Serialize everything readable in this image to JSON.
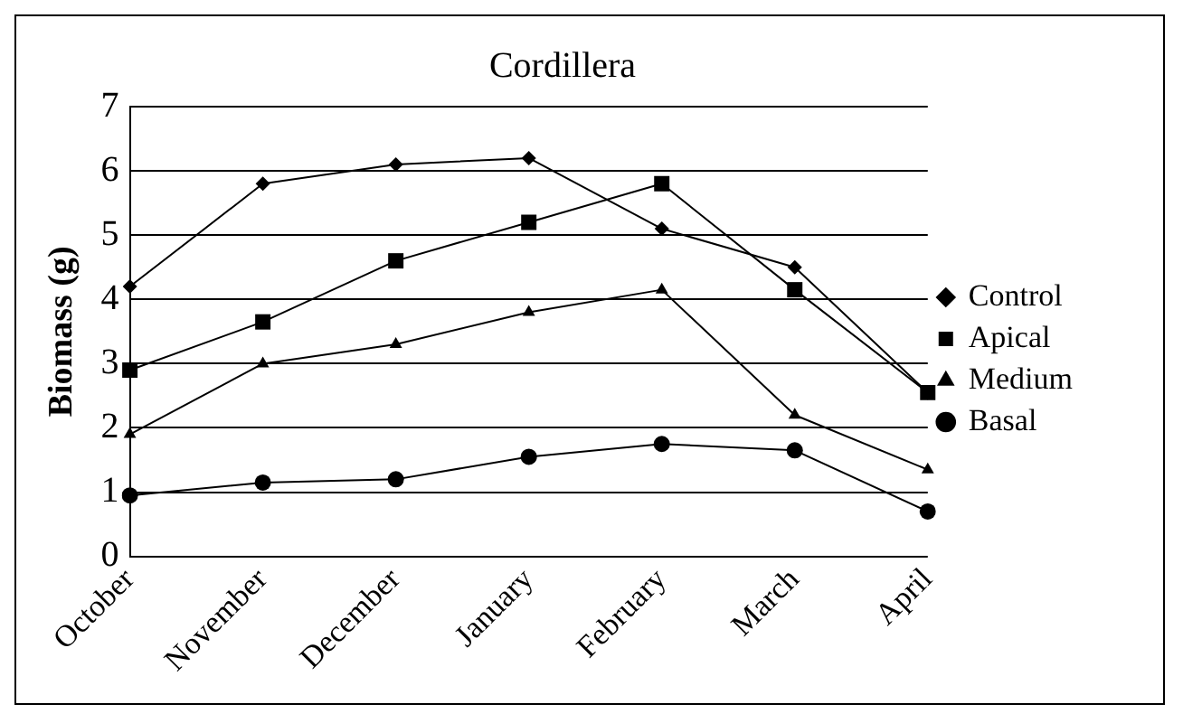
{
  "chart_data": {
    "type": "line",
    "title": "Cordillera",
    "ylabel": "Biomass (g)",
    "categories": [
      "October",
      "November",
      "December",
      "January",
      "February",
      "March",
      "April"
    ],
    "series": [
      {
        "name": "Control",
        "color": "#000000",
        "marker": "diamond",
        "values": [
          4.2,
          5.8,
          6.1,
          6.2,
          5.1,
          4.5,
          2.55
        ]
      },
      {
        "name": "Apical",
        "color": "#000000",
        "marker": "square",
        "values": [
          2.9,
          3.65,
          4.6,
          5.2,
          5.8,
          4.15,
          2.55
        ]
      },
      {
        "name": "Medium",
        "color": "#000000",
        "marker": "triangle",
        "values": [
          1.9,
          3.0,
          3.3,
          3.8,
          4.15,
          2.2,
          1.35
        ]
      },
      {
        "name": "Basal",
        "color": "#000000",
        "marker": "circle",
        "values": [
          0.95,
          1.15,
          1.2,
          1.55,
          1.75,
          1.65,
          0.7
        ]
      }
    ],
    "ylim": [
      0,
      7
    ],
    "yticks": [
      0,
      1,
      2,
      3,
      4,
      5,
      6,
      7
    ],
    "grid": "y",
    "legend": "right",
    "line_style": "solid"
  }
}
